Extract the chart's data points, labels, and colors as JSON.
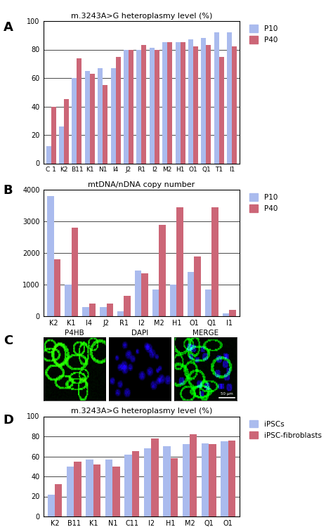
{
  "panel_A": {
    "title": "m.3243A>G heteroplasmy level (%)",
    "categories": [
      "C 1",
      "K2",
      "B11",
      "K1",
      "N1",
      "I4",
      "J2",
      "R1",
      "I2",
      "M2",
      "H1",
      "O1",
      "Q1",
      "T1",
      "I1"
    ],
    "P10": [
      12,
      26,
      60,
      65,
      67,
      67,
      80,
      80,
      81,
      85,
      85,
      87,
      88,
      92,
      92
    ],
    "P40": [
      40,
      45,
      74,
      63,
      55,
      75,
      80,
      83,
      80,
      85,
      85,
      82,
      83,
      75,
      82
    ],
    "ylim": [
      0,
      100
    ],
    "yticks": [
      0,
      20,
      40,
      60,
      80,
      100
    ]
  },
  "panel_B": {
    "title": "mtDNA/nDNA copy number",
    "categories": [
      "K2",
      "K1",
      "I4",
      "J2",
      "R1",
      "I2",
      "M2",
      "H1",
      "O1",
      "Q1",
      "I1"
    ],
    "P10": [
      3800,
      1000,
      300,
      280,
      150,
      1450,
      850,
      1000,
      1400,
      850,
      100
    ],
    "P40": [
      1800,
      2800,
      400,
      400,
      650,
      1350,
      2900,
      3450,
      1900,
      3450,
      200
    ],
    "ylim": [
      0,
      4000
    ],
    "yticks": [
      0,
      1000,
      2000,
      3000,
      4000
    ]
  },
  "panel_D": {
    "title": "m.3243A>G heteroplasmy level (%)",
    "categories": [
      "K2",
      "B11",
      "K1",
      "N1",
      "C11",
      "I2",
      "H1",
      "M2",
      "Q1",
      "O1"
    ],
    "iPSCs": [
      22,
      50,
      57,
      57,
      62,
      68,
      70,
      72,
      73,
      75
    ],
    "iPSC_fibroblasts": [
      32,
      55,
      52,
      50,
      65,
      78,
      58,
      82,
      72,
      76
    ],
    "ylim": [
      0,
      100
    ],
    "yticks": [
      0,
      20,
      40,
      60,
      80,
      100
    ]
  },
  "colors": {
    "P10_blue": "#AABBEE",
    "P40_pink": "#CC6677",
    "iPSCs_blue": "#AABBEE",
    "iPSC_fibroblasts_pink": "#CC6677"
  },
  "panel_C_labels": [
    "P4HB",
    "DAPI",
    "MERGE"
  ]
}
